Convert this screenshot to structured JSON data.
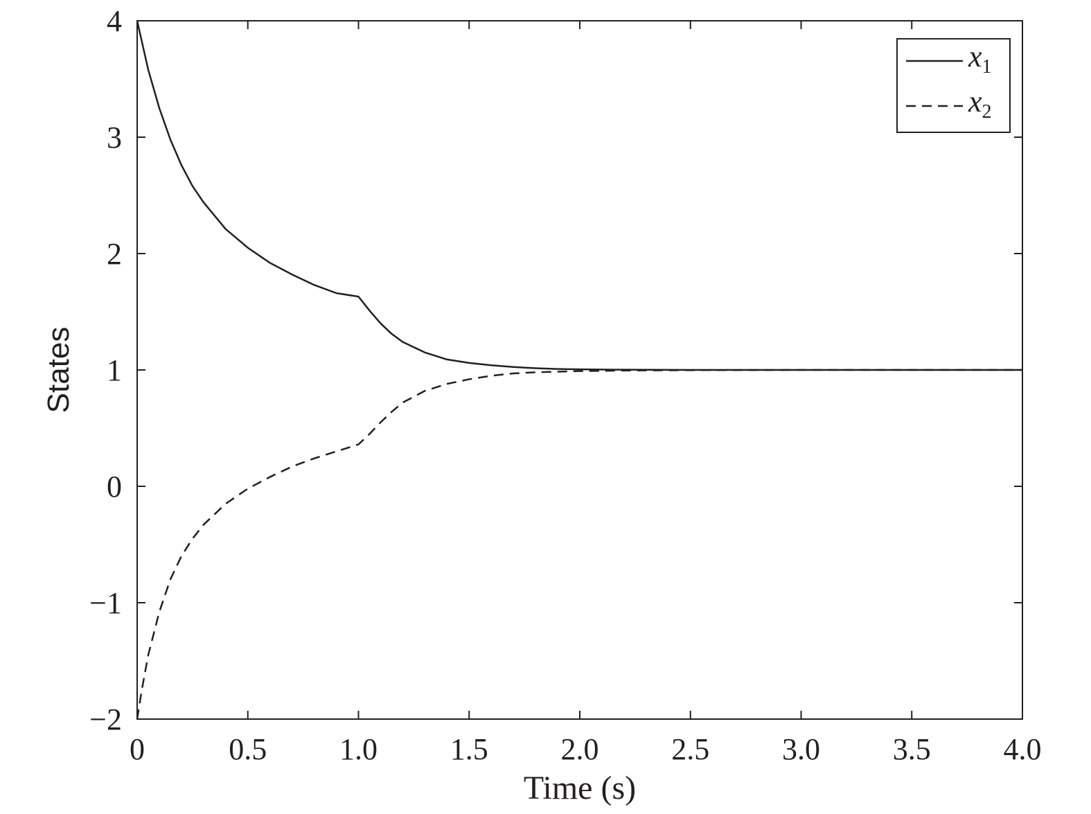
{
  "chart_data": {
    "type": "line",
    "xlabel": "Time (s)",
    "ylabel": "States",
    "xlim": [
      0,
      4.0
    ],
    "ylim": [
      -2,
      4
    ],
    "grid": false,
    "legend_position": "top-right",
    "x_ticks": [
      "0",
      "0.5",
      "1.0",
      "1.5",
      "2.0",
      "2.5",
      "3.0",
      "3.5",
      "4.0"
    ],
    "x_tick_values": [
      0,
      0.5,
      1.0,
      1.5,
      2.0,
      2.5,
      3.0,
      3.5,
      4.0
    ],
    "y_ticks": [
      "−2",
      "−1",
      "0",
      "1",
      "2",
      "3",
      "4"
    ],
    "y_tick_values": [
      -2,
      -1,
      0,
      1,
      2,
      3,
      4
    ],
    "series": [
      {
        "legend_symbol": "x",
        "legend_subscript": "1",
        "style": "solid",
        "color": "#231f20",
        "x": [
          0,
          0.05,
          0.1,
          0.15,
          0.2,
          0.25,
          0.3,
          0.4,
          0.5,
          0.6,
          0.7,
          0.8,
          0.9,
          1.0,
          1.05,
          1.1,
          1.15,
          1.2,
          1.3,
          1.4,
          1.5,
          1.6,
          1.7,
          1.8,
          1.9,
          2.0,
          2.2,
          2.5,
          3.0,
          3.5,
          4.0
        ],
        "y": [
          4.0,
          3.58,
          3.25,
          2.98,
          2.76,
          2.58,
          2.44,
          2.21,
          2.05,
          1.92,
          1.82,
          1.73,
          1.66,
          1.63,
          1.51,
          1.4,
          1.31,
          1.24,
          1.15,
          1.09,
          1.06,
          1.04,
          1.025,
          1.015,
          1.008,
          1.005,
          1.002,
          1.0,
          1.0,
          1.0,
          1.0
        ]
      },
      {
        "legend_symbol": "x",
        "legend_subscript": "2",
        "style": "dashed",
        "color": "#231f20",
        "x": [
          0,
          0.02,
          0.05,
          0.1,
          0.15,
          0.2,
          0.25,
          0.3,
          0.4,
          0.5,
          0.6,
          0.7,
          0.8,
          0.9,
          1.0,
          1.05,
          1.1,
          1.15,
          1.2,
          1.3,
          1.4,
          1.5,
          1.6,
          1.7,
          1.8,
          1.9,
          2.0,
          2.2,
          2.5,
          3.0,
          3.5,
          4.0
        ],
        "y": [
          -2.0,
          -1.76,
          -1.45,
          -1.08,
          -0.8,
          -0.6,
          -0.45,
          -0.33,
          -0.15,
          -0.02,
          0.08,
          0.17,
          0.24,
          0.3,
          0.36,
          0.45,
          0.55,
          0.64,
          0.72,
          0.82,
          0.88,
          0.92,
          0.95,
          0.97,
          0.98,
          0.985,
          0.99,
          0.995,
          0.998,
          1.0,
          1.0,
          1.0
        ]
      }
    ]
  }
}
